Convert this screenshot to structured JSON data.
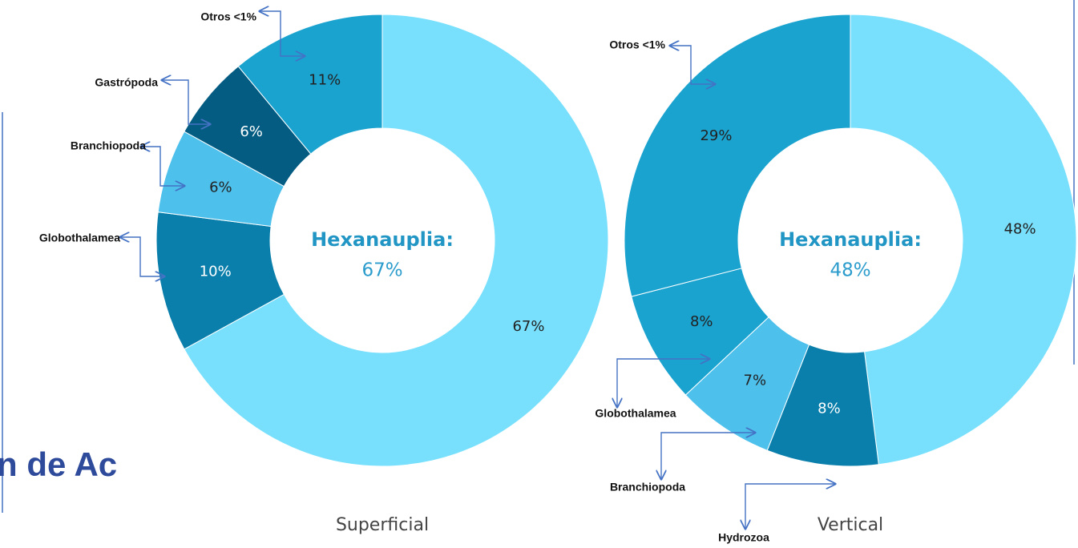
{
  "background_text": "n de Ac",
  "chart_data": [
    {
      "type": "pie",
      "title": "Superficial",
      "categories": [
        null,
        "Globothalamea",
        "Branchiopoda",
        "Gastrópoda",
        "Otros <1%"
      ],
      "values": [
        67,
        10,
        6,
        6,
        11
      ],
      "value_labels": [
        "67%",
        "10%",
        "6%",
        "6%",
        "11%"
      ],
      "colors": [
        "#78e0fc",
        "#0b7fab",
        "#4dc0ec",
        "#055c82",
        "#1ba3d0"
      ],
      "center_title": "Hexanauplia:",
      "center_value_label": "67%"
    },
    {
      "type": "pie",
      "title": "Vertical",
      "categories": [
        null,
        "Hydrozoa",
        "Branchiopoda",
        "Globothalamea",
        "Otros <1%"
      ],
      "values": [
        48,
        8,
        7,
        8,
        29
      ],
      "value_labels": [
        "48%",
        "8%",
        "7%",
        "8%",
        "29%"
      ],
      "colors": [
        "#78e0fc",
        "#0b7fab",
        "#4dc0ec",
        "#1ba3d0",
        "#1ba3d0"
      ],
      "center_title": "Hexanauplia:",
      "center_value_label": "48%"
    }
  ]
}
